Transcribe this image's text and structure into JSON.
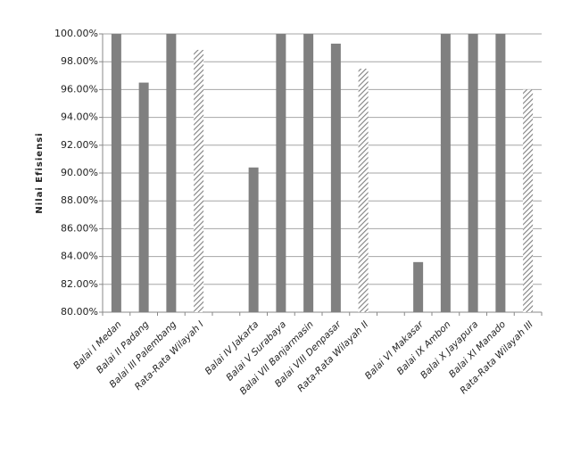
{
  "chart_data": {
    "type": "bar",
    "y_label": "Nilai Efisiensi",
    "categories": [
      "Balai I Medan",
      "Balai II Padang",
      "Balai III Palembang",
      "Rata-Rata Wilayah I",
      null,
      "Balai IV Jakarta",
      "Balai V Surabaya",
      "Balai VII Banjarmasin",
      "Balai VIII Denpasar",
      "Rata-Rata Wilayah II",
      null,
      "Balai VI Makasar",
      "Balai IX Ambon",
      "Balai X Jayapura",
      "Balai XI Manado",
      "Rata-Rata Wilayah III"
    ],
    "values": [
      100,
      96.5,
      100,
      98.85,
      null,
      90.4,
      100,
      100,
      99.3,
      97.5,
      null,
      83.6,
      100,
      100,
      100,
      96.0
    ],
    "bar_fill": [
      "solid",
      "solid",
      "solid",
      "hatched",
      null,
      "solid",
      "solid",
      "solid",
      "solid",
      "hatched",
      null,
      "solid",
      "solid",
      "solid",
      "solid",
      "hatched"
    ],
    "color": "#808080",
    "ylim": [
      80,
      100
    ],
    "yticks": [
      {
        "value": 80,
        "label": "80.00%"
      },
      {
        "value": 82,
        "label": "82.00%"
      },
      {
        "value": 84,
        "label": "84.00%"
      },
      {
        "value": 86,
        "label": "86.00%"
      },
      {
        "value": 88,
        "label": "88.00%"
      },
      {
        "value": 90,
        "label": "90.00%"
      },
      {
        "value": 92,
        "label": "92.00%"
      },
      {
        "value": 94,
        "label": "94.00%"
      },
      {
        "value": 96,
        "label": "96.00%"
      },
      {
        "value": 98,
        "label": "98.00%"
      },
      {
        "value": 100,
        "label": "100.00%"
      }
    ],
    "grid": true
  }
}
